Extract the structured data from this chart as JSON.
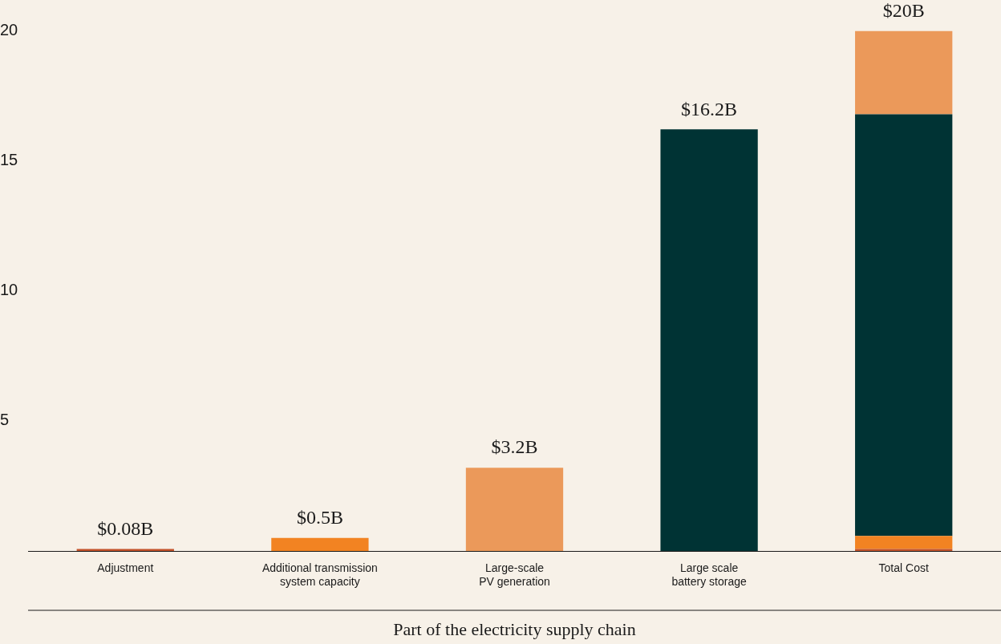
{
  "chart_data": {
    "type": "bar",
    "stacked": true,
    "xlabel": "Part of the electricity supply chain",
    "categories": [
      "Adjustment",
      "Additional transmission system capacity",
      "Large-scale PV generation",
      "Large scale battery storage",
      "Total Cost"
    ],
    "series": [
      {
        "color": "#c4532a",
        "values": [
          0.08,
          null,
          null,
          null,
          0.08
        ],
        "value_labels": [
          "$0.08B",
          null,
          null,
          null,
          null
        ]
      },
      {
        "color": "#f28322",
        "values": [
          null,
          0.5,
          null,
          null,
          0.5
        ],
        "value_labels": [
          null,
          "$0.5B",
          null,
          null,
          null
        ]
      },
      {
        "color": "#003334",
        "values": [
          null,
          null,
          null,
          16.2,
          16.2
        ],
        "value_labels": [
          null,
          null,
          null,
          "$16.2B",
          null
        ]
      },
      {
        "color": "#eb995a",
        "values": [
          null,
          null,
          3.2,
          null,
          3.2
        ],
        "value_labels": [
          null,
          null,
          "$3.2B",
          null,
          null
        ]
      }
    ],
    "totals": [
      null,
      null,
      null,
      null,
      "$20B"
    ],
    "ylim": [
      0,
      20
    ],
    "yticks": [
      5,
      10,
      15,
      20
    ],
    "grid": false,
    "legend": false
  }
}
